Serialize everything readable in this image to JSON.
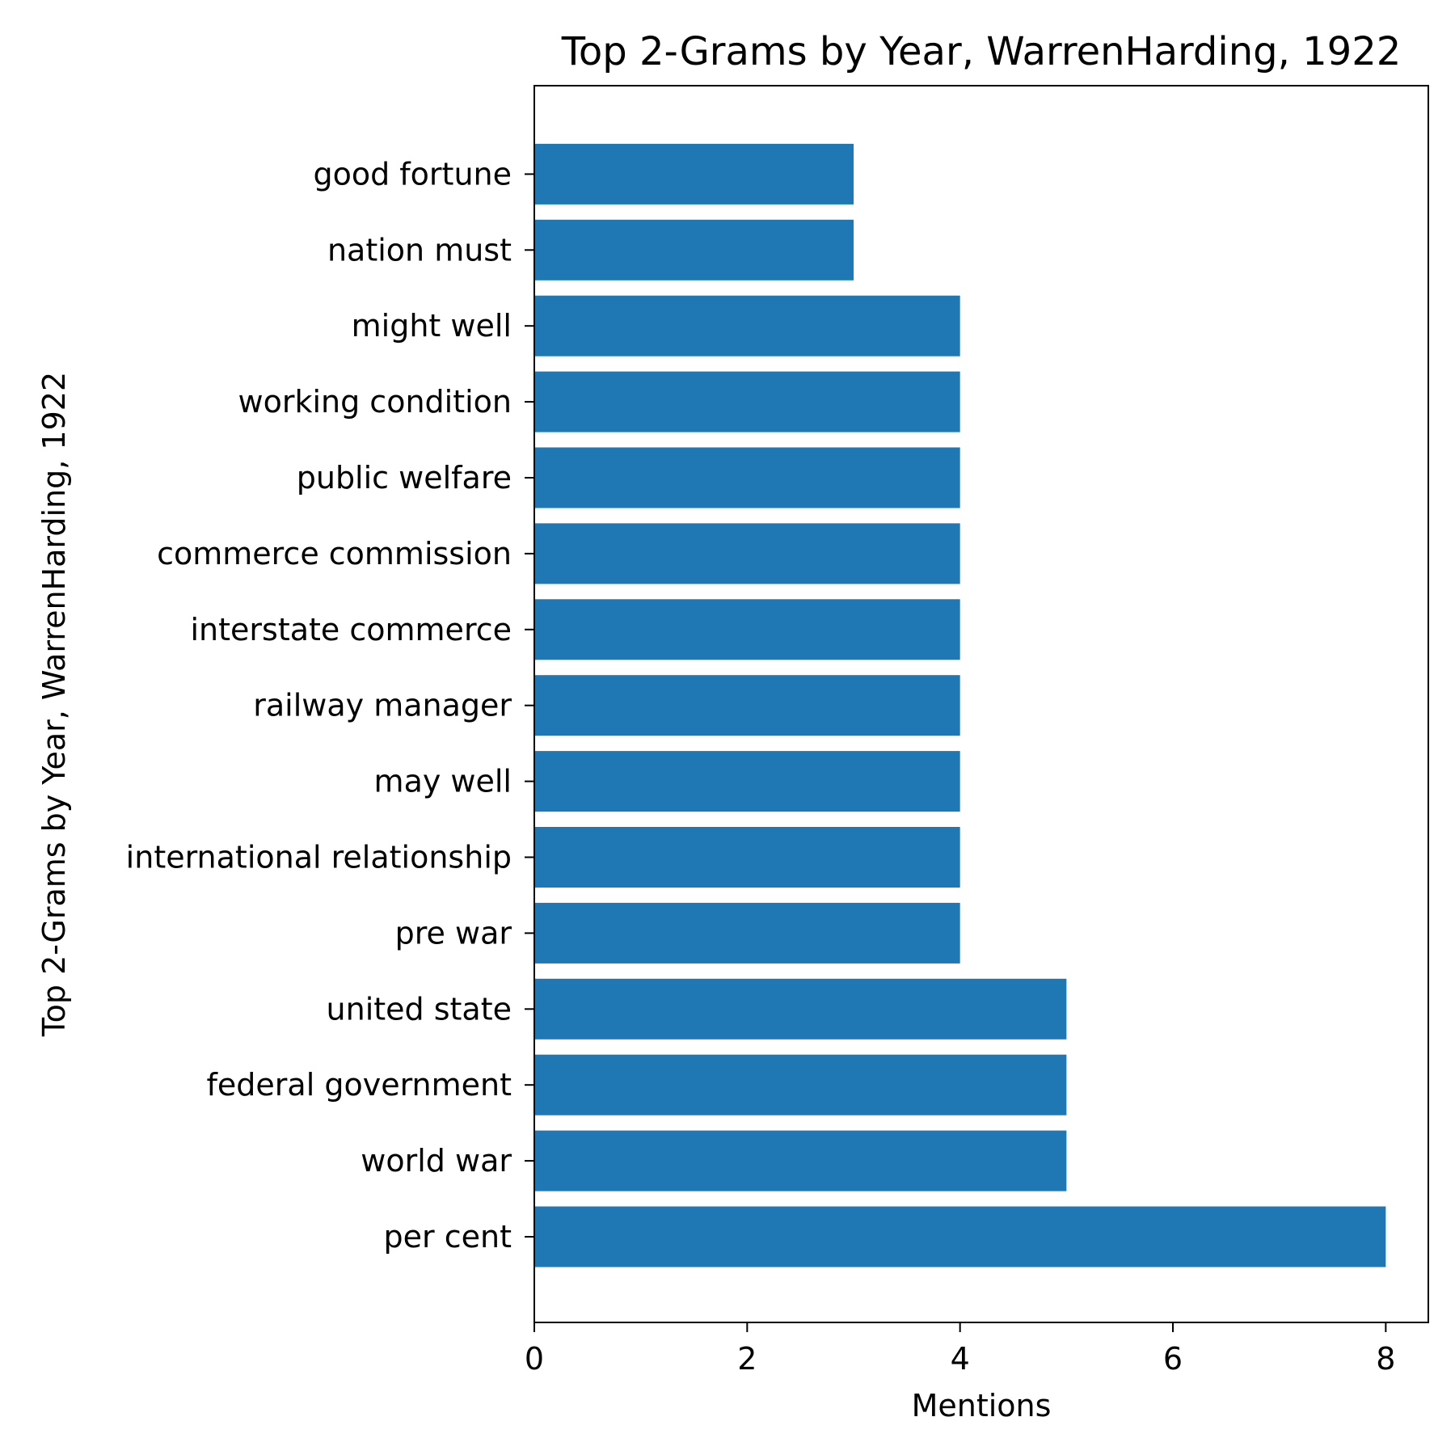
{
  "chart_data": {
    "type": "bar",
    "orientation": "horizontal",
    "title": "Top 2-Grams by Year, WarrenHarding, 1922",
    "xlabel": "Mentions",
    "ylabel": "Top 2-Grams by Year, WarrenHarding, 1922",
    "categories": [
      "per cent",
      "world war",
      "federal government",
      "united state",
      "pre war",
      "international relationship",
      "may well",
      "railway manager",
      "interstate commerce",
      "commerce commission",
      "public welfare",
      "working condition",
      "might well",
      "nation must",
      "good fortune"
    ],
    "values": [
      8,
      5,
      5,
      5,
      4,
      4,
      4,
      4,
      4,
      4,
      4,
      4,
      4,
      3,
      3
    ],
    "xlim": [
      0,
      8.4
    ],
    "xticks": [
      0,
      2,
      4,
      6,
      8
    ],
    "grid": false,
    "bar_color": "#1f77b4"
  }
}
